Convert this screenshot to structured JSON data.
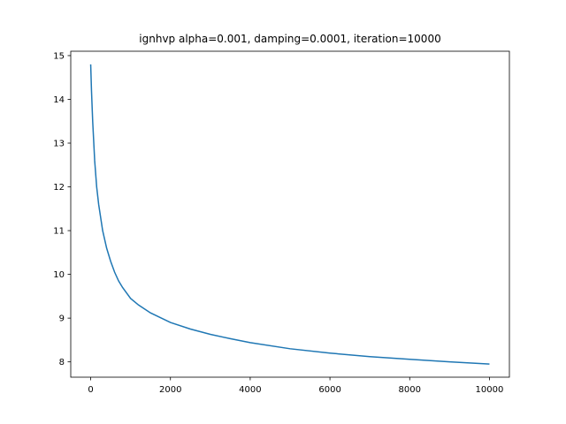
{
  "chart_data": {
    "type": "line",
    "title": "ignhvp alpha=0.001, damping=0.0001, iteration=10000",
    "xlabel": "",
    "ylabel": "",
    "xlim": [
      -500,
      10500
    ],
    "ylim": [
      7.65,
      15.1
    ],
    "grid": false,
    "xticks": [
      0,
      2000,
      4000,
      6000,
      8000,
      10000
    ],
    "yticks": [
      8,
      9,
      10,
      11,
      12,
      13,
      14,
      15
    ],
    "series": [
      {
        "color": "#1f77b4",
        "x": [
          0,
          20,
          50,
          100,
          150,
          200,
          300,
          400,
          500,
          600,
          700,
          800,
          1000,
          1200,
          1500,
          2000,
          2500,
          3000,
          3500,
          4000,
          5000,
          6000,
          7000,
          8000,
          9000,
          10000
        ],
        "y": [
          14.8,
          14.2,
          13.5,
          12.6,
          12.0,
          11.6,
          11.0,
          10.6,
          10.3,
          10.05,
          9.85,
          9.7,
          9.45,
          9.3,
          9.12,
          8.9,
          8.75,
          8.63,
          8.53,
          8.44,
          8.3,
          8.2,
          8.12,
          8.06,
          8.0,
          7.95
        ]
      }
    ]
  }
}
